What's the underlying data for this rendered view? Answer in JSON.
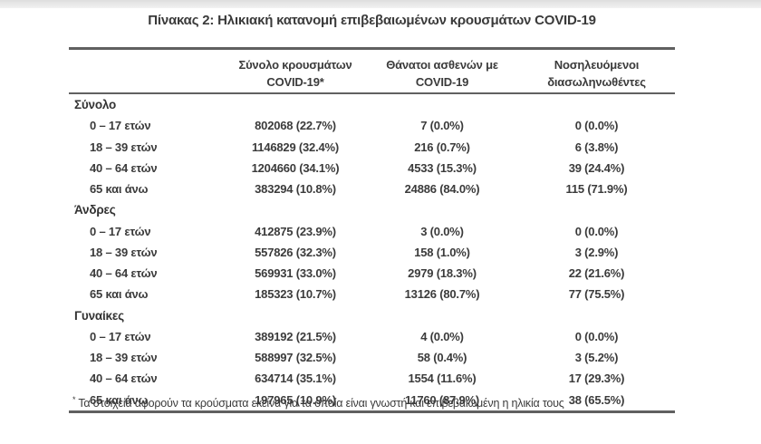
{
  "page": {
    "title": "Πίνακας 2: Ηλικιακή κατανομή επιβεβαιωμένων κρουσμάτων COVID-19",
    "footnote_marker": "*",
    "footnote": "Τα στοιχεία αφορούν τα κρούσματα εκείνα για τα οποία είναι γνωστή και επιβεβαιωμένη η ηλικία τους"
  },
  "colors": {
    "text": "#3b3b3b",
    "border": "#606060",
    "top_strip": "#e6e6e6",
    "background": "#ffffff"
  },
  "table": {
    "column_headers": [
      {
        "line1": "Σύνολο κρουσμάτων",
        "line2": "COVID-19*"
      },
      {
        "line1": "Θάνατοι ασθενών με",
        "line2": "COVID-19"
      },
      {
        "line1": "Νοσηλευόμενοι",
        "line2": "διασωληνωθέντες"
      }
    ],
    "sections": [
      {
        "label": "Σύνολο",
        "rows": [
          {
            "label": "0 – 17 ετών",
            "cases": "802068 (22.7%)",
            "deaths": "7 (0.0%)",
            "intubated": "0 (0.0%)"
          },
          {
            "label": "18 – 39 ετών",
            "cases": "1146829 (32.4%)",
            "deaths": "216 (0.7%)",
            "intubated": "6 (3.8%)"
          },
          {
            "label": "40 – 64 ετών",
            "cases": "1204660 (34.1%)",
            "deaths": "4533 (15.3%)",
            "intubated": "39 (24.4%)"
          },
          {
            "label": "65 και άνω",
            "cases": "383294 (10.8%)",
            "deaths": "24886 (84.0%)",
            "intubated": "115 (71.9%)"
          }
        ]
      },
      {
        "label": "Άνδρες",
        "rows": [
          {
            "label": "0 – 17 ετών",
            "cases": "412875 (23.9%)",
            "deaths": "3 (0.0%)",
            "intubated": "0 (0.0%)"
          },
          {
            "label": "18 – 39 ετών",
            "cases": "557826 (32.3%)",
            "deaths": "158 (1.0%)",
            "intubated": "3 (2.9%)"
          },
          {
            "label": "40 – 64 ετών",
            "cases": "569931 (33.0%)",
            "deaths": "2979 (18.3%)",
            "intubated": "22 (21.6%)"
          },
          {
            "label": "65 και άνω",
            "cases": "185323 (10.7%)",
            "deaths": "13126 (80.7%)",
            "intubated": "77 (75.5%)"
          }
        ]
      },
      {
        "label": "Γυναίκες",
        "rows": [
          {
            "label": "0 – 17 ετών",
            "cases": "389192 (21.5%)",
            "deaths": "4 (0.0%)",
            "intubated": "0 (0.0%)"
          },
          {
            "label": "18 – 39 ετών",
            "cases": "588997 (32.5%)",
            "deaths": "58 (0.4%)",
            "intubated": "3 (5.2%)"
          },
          {
            "label": "40 – 64 ετών",
            "cases": "634714 (35.1%)",
            "deaths": "1554 (11.6%)",
            "intubated": "17 (29.3%)"
          },
          {
            "label": "65 και άνω",
            "cases": "197965 (10.9%)",
            "deaths": "11760 (87.9%)",
            "intubated": "38 (65.5%)"
          }
        ]
      }
    ]
  }
}
